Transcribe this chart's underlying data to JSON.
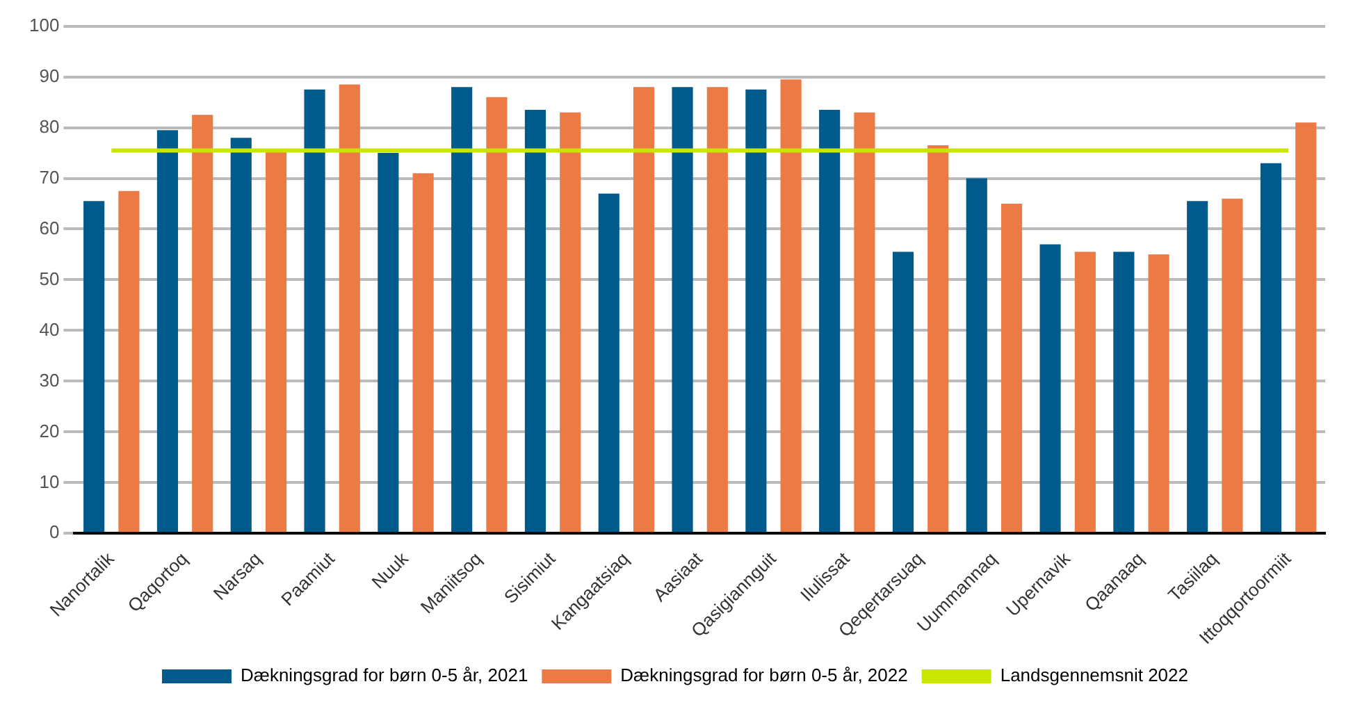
{
  "chart_data": {
    "type": "bar",
    "categories": [
      "Nanortalik",
      "Qaqortoq",
      "Narsaq",
      "Paamiut",
      "Nuuk",
      "Maniitsoq",
      "Sisimiut",
      "Kangaatsiaq",
      "Aasiaat",
      "Qasigiannguit",
      "Ilulissat",
      "Qeqertarsuaq",
      "Uummannaq",
      "Upernavik",
      "Qaanaaq",
      "Tasiilaq",
      "Ittoqqortoormiit"
    ],
    "series": [
      {
        "name": "Dækningsgrad for børn 0-5 år, 2021",
        "color": "#005b8c",
        "values": [
          65.5,
          79.5,
          78,
          87.5,
          75,
          88,
          83.5,
          67,
          88,
          87.5,
          83.5,
          55.5,
          70,
          57,
          55.5,
          65.5,
          73
        ]
      },
      {
        "name": "Dækningsgrad for børn 0-5 år, 2022",
        "color": "#ec7a45",
        "values": [
          67.5,
          82.5,
          75.5,
          88.5,
          71,
          86,
          83,
          88,
          88,
          89.5,
          83,
          76.5,
          65,
          55.5,
          55,
          66,
          81
        ]
      },
      {
        "name": "Landsgennemsnit 2022",
        "type": "line",
        "color": "#c8e600",
        "values": [
          75.5,
          75.5,
          75.5,
          75.5,
          75.5,
          75.5,
          75.5,
          75.5,
          75.5,
          75.5,
          75.5,
          75.5,
          75.5,
          75.5,
          75.5,
          75.5,
          75.5
        ]
      }
    ],
    "ylim": [
      0,
      100
    ],
    "yticks": [
      0,
      10,
      20,
      30,
      40,
      50,
      60,
      70,
      80,
      90,
      100
    ],
    "grid": "y",
    "legend": "bottom",
    "marker": "none"
  }
}
